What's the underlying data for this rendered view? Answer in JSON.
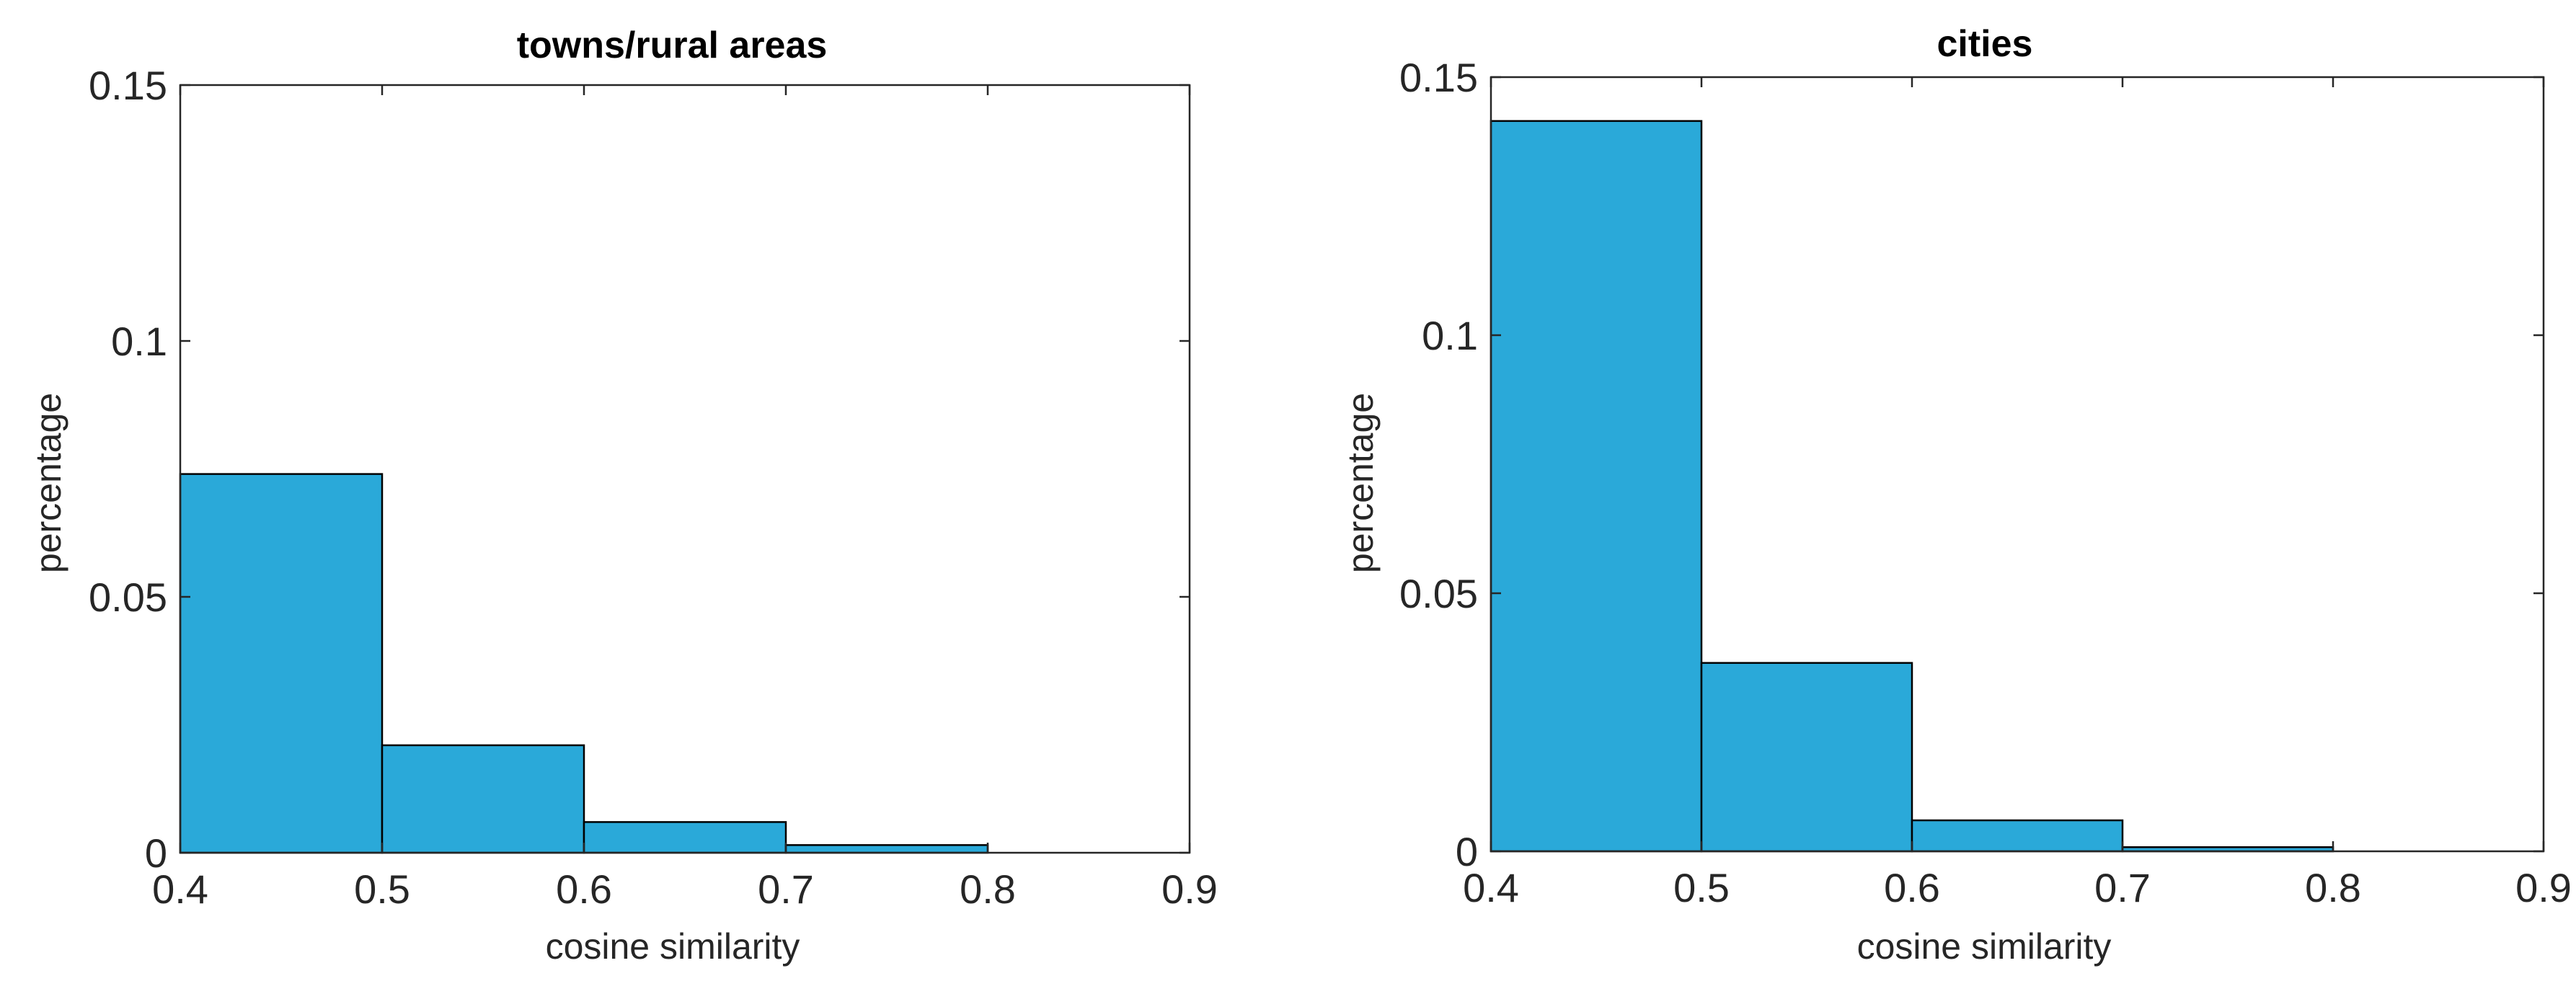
{
  "chart_data": [
    {
      "type": "bar",
      "title": "towns/rural areas",
      "xlabel": "cosine similarity",
      "ylabel": "percentage",
      "bin_edges": [
        0.4,
        0.5,
        0.6,
        0.7,
        0.8
      ],
      "values": [
        0.074,
        0.021,
        0.006,
        0.0015
      ],
      "xlim": [
        0.4,
        0.9
      ],
      "ylim": [
        0,
        0.15
      ],
      "xticks": [
        "0.4",
        "0.5",
        "0.6",
        "0.7",
        "0.8",
        "0.9"
      ],
      "yticks": [
        "0",
        "0.05",
        "0.1",
        "0.15"
      ],
      "grid": false,
      "bar_color": "#2aa9d9"
    },
    {
      "type": "bar",
      "title": "cities",
      "xlabel": "cosine similarity",
      "ylabel": "percentage",
      "bin_edges": [
        0.4,
        0.5,
        0.6,
        0.7,
        0.8
      ],
      "values": [
        0.1415,
        0.0365,
        0.006,
        0.0008
      ],
      "xlim": [
        0.4,
        0.9
      ],
      "ylim": [
        0,
        0.15
      ],
      "xticks": [
        "0.4",
        "0.5",
        "0.6",
        "0.7",
        "0.8",
        "0.9"
      ],
      "yticks": [
        "0",
        "0.05",
        "0.1",
        "0.15"
      ],
      "grid": false,
      "bar_color": "#2aa9d9"
    }
  ]
}
